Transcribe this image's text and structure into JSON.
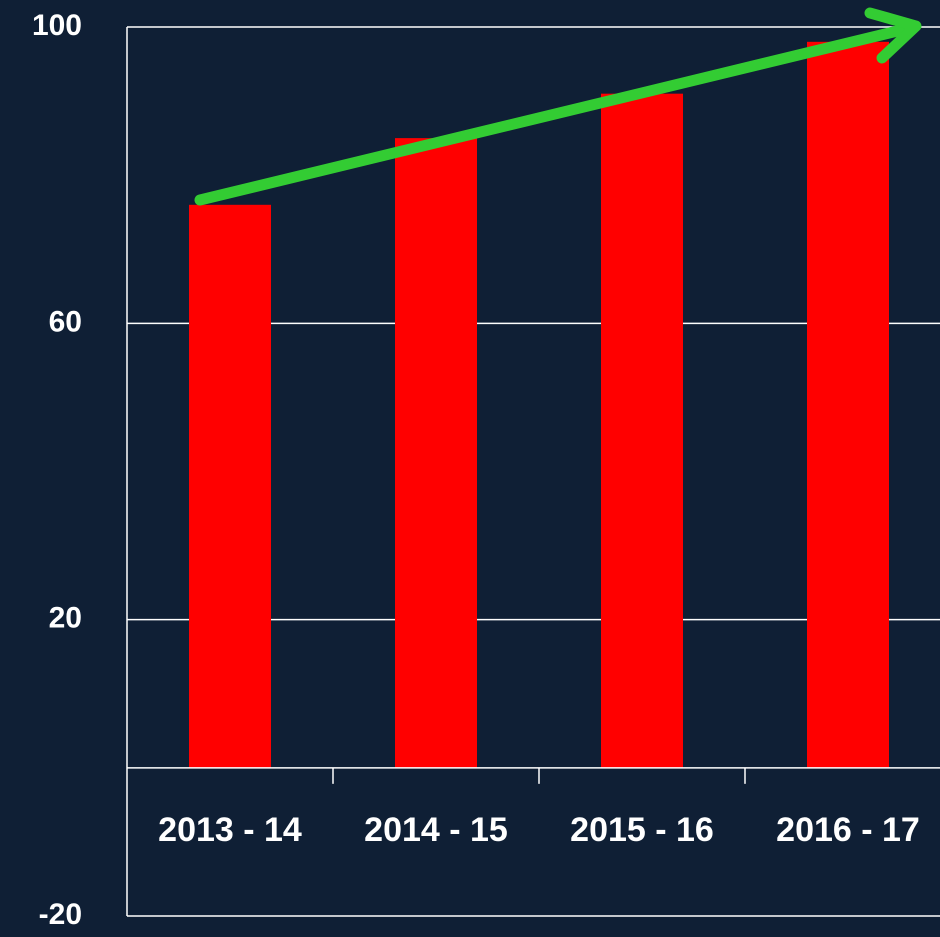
{
  "chart_data": {
    "type": "bar",
    "categories": [
      "2013 - 14",
      "2014 - 15",
      "2015 - 16",
      "2016 - 17"
    ],
    "values": [
      76,
      85,
      91,
      98
    ],
    "color": "#ff0000",
    "ylim": [
      -20,
      100
    ],
    "yticks": [
      -20,
      20,
      60,
      100
    ],
    "grid": true
  }
}
